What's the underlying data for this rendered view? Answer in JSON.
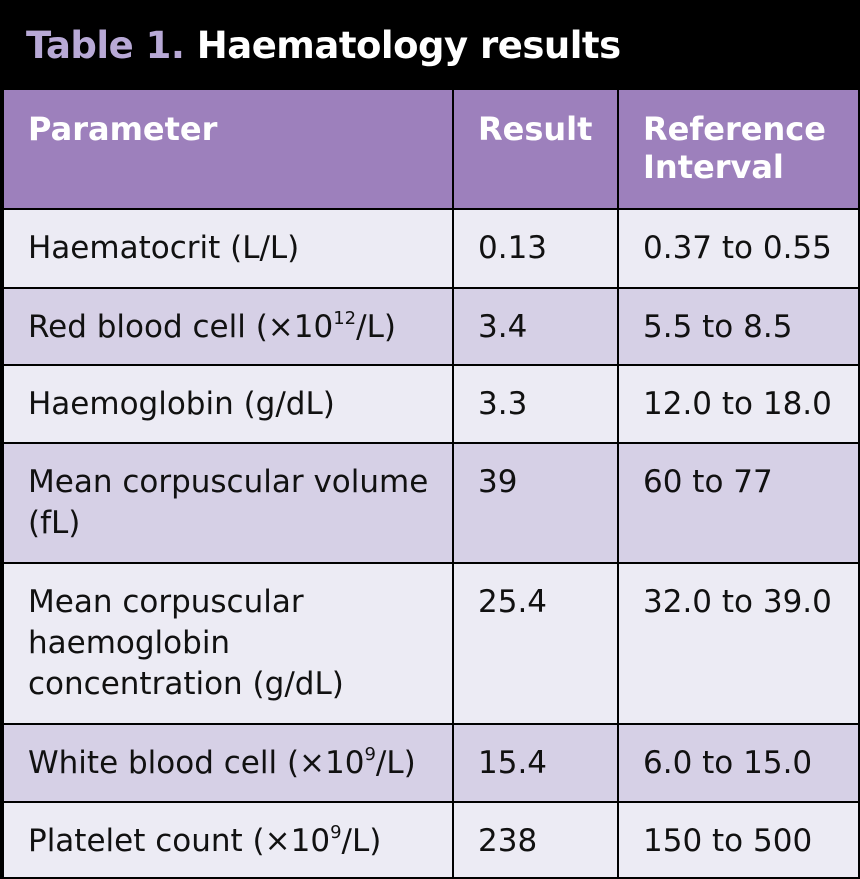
{
  "title": {
    "number": "Table 1.",
    "text": "Haematology results"
  },
  "columns": [
    "Parameter",
    "Result",
    "Reference Interval"
  ],
  "rows": [
    {
      "param": "Haematocrit (L/L)",
      "result": "0.13",
      "ref": "0.37 to 0.55"
    },
    {
      "param_pre": "Red blood cell (×10",
      "param_sup": "12",
      "param_post": "/L)",
      "result": "3.4",
      "ref": "5.5 to 8.5"
    },
    {
      "param": "Haemoglobin (g/dL)",
      "result": "3.3",
      "ref": "12.0 to 18.0"
    },
    {
      "param": "Mean corpuscular volume (fL)",
      "result": "39",
      "ref": "60 to 77"
    },
    {
      "param": "Mean corpuscular haemoglobin concentration (g/dL)",
      "result": "25.4",
      "ref": "32.0 to 39.0"
    },
    {
      "param_pre": "White blood cell (×10",
      "param_sup": "9",
      "param_post": "/L)",
      "result": "15.4",
      "ref": "6.0 to 15.0"
    },
    {
      "param_pre": "Platelet count (×10",
      "param_sup": "9",
      "param_post": "/L)",
      "result": "238",
      "ref": "150 to 500"
    }
  ],
  "colors": {
    "header_bg": "#9d80bc",
    "row_light": "#ecebf4",
    "row_dark": "#d6d0e6",
    "title_bg": "#000000",
    "title_number": "#b8a9d6"
  }
}
